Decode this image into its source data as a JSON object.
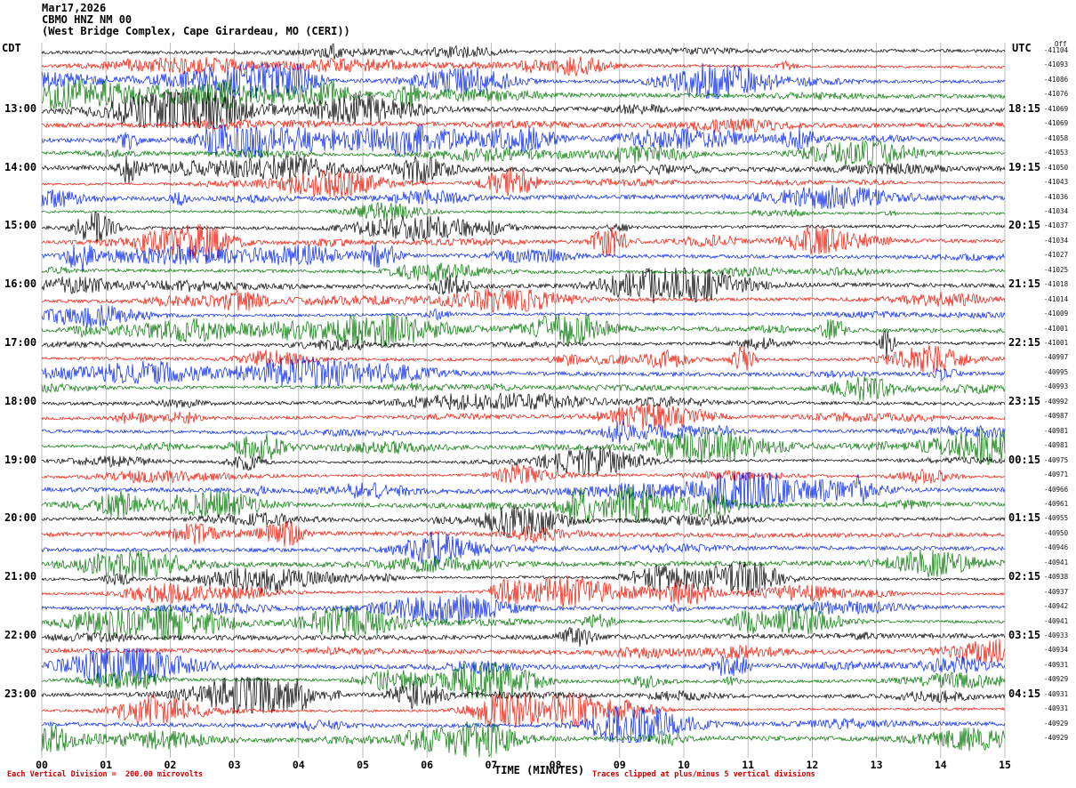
{
  "header": {
    "date": "Mar17,2026",
    "station": "CBMO HNZ NM 00",
    "location": "(West Bridge Complex, Cape Girardeau, MO (CERI))"
  },
  "axes": {
    "left_tz": "CDT",
    "right_tz": "UTC",
    "right_col_header": "Off",
    "xlabel": "TIME (MINUTES)"
  },
  "footer": {
    "left": "Each Vertical Division =  200.00 microvolts",
    "right": "Traces clipped at plus/minus 5 vertical divisions"
  },
  "colors": {
    "trace_cycle": [
      "#000000",
      "#ee1100",
      "#0022ee",
      "#007700"
    ],
    "grid": "#aaaaaa",
    "footer_text": "#cc0000",
    "text": "#000000"
  },
  "chart_data": {
    "type": "line",
    "variant": "helicorder_seismogram",
    "title": "CBMO HNZ NM 00 — Mar17,2026 — West Bridge Complex, Cape Girardeau, MO (CERI)",
    "date": "Mar17,2026",
    "station": "CBMO HNZ NM 00",
    "location": "West Bridge Complex, Cape Girardeau, MO (CERI)",
    "xlabel": "TIME (MINUTES)",
    "x_minutes": [
      0,
      15
    ],
    "x_tick_labels": [
      "00",
      "01",
      "02",
      "03",
      "04",
      "05",
      "06",
      "07",
      "08",
      "09",
      "10",
      "11",
      "12",
      "13",
      "14",
      "15"
    ],
    "trace_minutes_per_row": 15,
    "row_count": 48,
    "color_cycle_names": [
      "black",
      "red",
      "blue",
      "green"
    ],
    "hour_rows": [
      4,
      8,
      12,
      16,
      20,
      24,
      28,
      32,
      36,
      40,
      44
    ],
    "cdt_hour_labels": [
      "13:00",
      "14:00",
      "15:00",
      "16:00",
      "17:00",
      "18:00",
      "19:00",
      "20:00",
      "21:00",
      "22:00",
      "23:00"
    ],
    "utc_hour_labels": [
      "18:15",
      "19:15",
      "20:15",
      "21:15",
      "22:15",
      "23:15",
      "00:15",
      "01:15",
      "02:15",
      "03:15",
      "04:15"
    ],
    "dc_offsets_per_row": [
      "-41104",
      "-41093",
      "-41086",
      "-41076",
      "-41069",
      "-41069",
      "-41058",
      "-41053",
      "-41050",
      "-41043",
      "-41036",
      "-41034",
      "-41037",
      "-41034",
      "-41027",
      "-41025",
      "-41018",
      "-41014",
      "-41009",
      "-41001",
      "-41001",
      "-40997",
      "-40995",
      "-40993",
      "-40992",
      "-40987",
      "-40981",
      "-40981",
      "-40975",
      "-40971",
      "-40966",
      "-40961",
      "-40955",
      "-40950",
      "-40946",
      "-40941",
      "-40938",
      "-40937",
      "-40942",
      "-40941",
      "-40933",
      "-40934",
      "-40931",
      "-40929",
      "-40931",
      "-40931",
      "-40929",
      "-40929"
    ],
    "amplitude_scale": "Each Vertical Division = 200.00 microvolts",
    "clipping": "Traces clipped at plus/minus 5 vertical divisions",
    "grid": "vertical gridline at every minute (16 lines)",
    "waveform_note": "continuous band-limited seismic noise with intermittent higher-amplitude bursts on every trace; individual sample values are not resolvable at screenshot resolution"
  }
}
